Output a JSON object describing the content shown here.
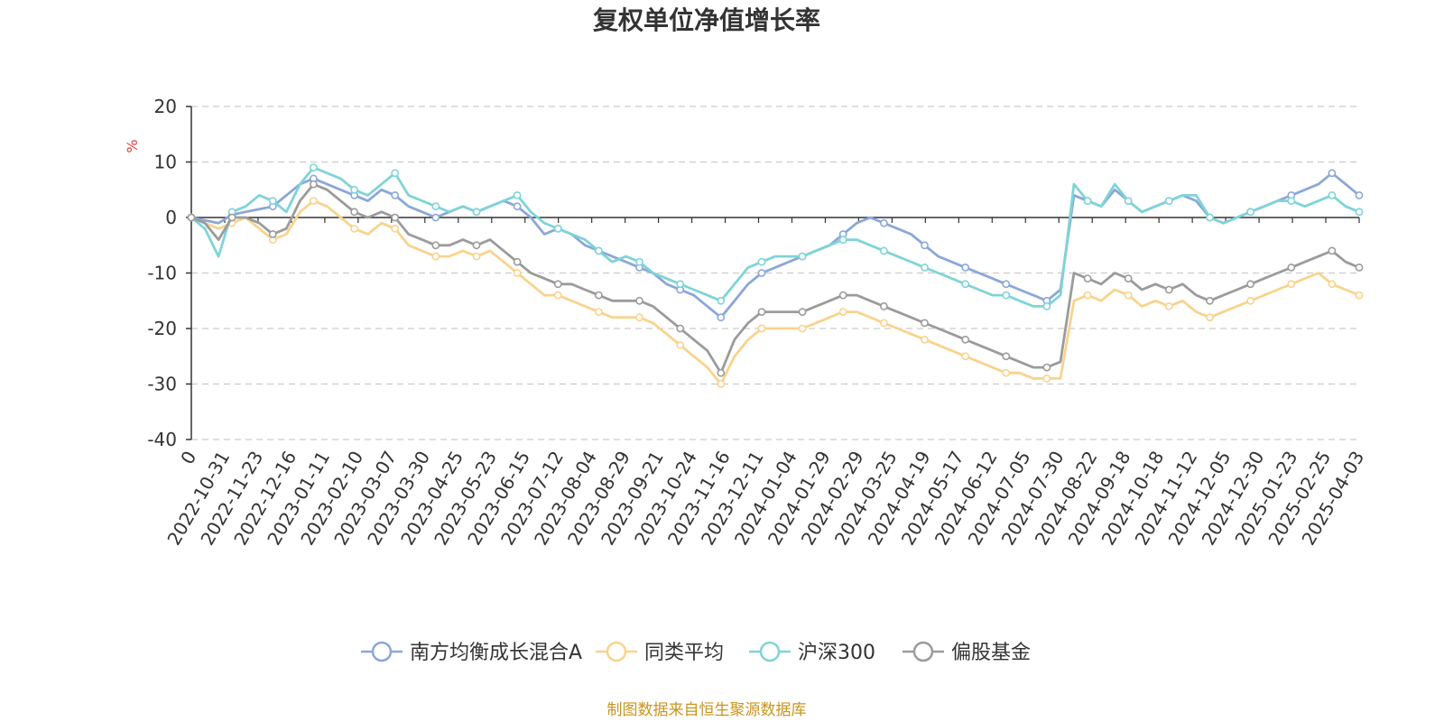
{
  "chart_data": {
    "type": "line",
    "title": "复权单位净值增长率",
    "ylabel": "%",
    "ylim": [
      -40,
      20
    ],
    "yticks": [
      "20",
      "10",
      "0",
      "-10",
      "-20",
      "-30",
      "-40"
    ],
    "yticks_values": [
      20,
      10,
      0,
      -10,
      -20,
      -30,
      -40
    ],
    "x_tick_labels": [
      "0",
      "2022-10-31",
      "2022-11-23",
      "2022-12-16",
      "2023-01-11",
      "2023-02-10",
      "2023-03-07",
      "2023-03-30",
      "2023-04-25",
      "2023-05-23",
      "2023-06-15",
      "2023-07-12",
      "2023-08-04",
      "2023-08-29",
      "2023-09-21",
      "2023-10-24",
      "2023-11-16",
      "2023-12-11",
      "2024-01-04",
      "2024-01-29",
      "2024-02-29",
      "2024-03-25",
      "2024-04-19",
      "2024-05-17",
      "2024-06-12",
      "2024-07-05",
      "2024-07-30",
      "2024-08-22",
      "2024-09-18",
      "2024-10-18",
      "2024-11-12",
      "2024-12-05",
      "2024-12-30",
      "2025-01-23",
      "2025-02-25",
      "2025-04-03"
    ],
    "grid": true,
    "legend_position": "bottom",
    "series": [
      {
        "name": "南方均衡成长混合A",
        "color": "#8ba7d9",
        "values": [
          0,
          -0.5,
          -1,
          0.5,
          1,
          1.5,
          2,
          4,
          6,
          7,
          6,
          5,
          4,
          3,
          5,
          4,
          2,
          1,
          0,
          1,
          2,
          1,
          2,
          3,
          2,
          0,
          -3,
          -2,
          -3,
          -5,
          -6,
          -7,
          -8,
          -9,
          -10,
          -12,
          -13,
          -14,
          -16,
          -18,
          -15,
          -12,
          -10,
          -9,
          -8,
          -7,
          -6,
          -5,
          -3,
          -1,
          0,
          -1,
          -2,
          -3,
          -5,
          -7,
          -8,
          -9,
          -10,
          -11,
          -12,
          -13,
          -14,
          -15,
          -13,
          4,
          3,
          2,
          5,
          3,
          1,
          2,
          3,
          4,
          3,
          0,
          -1,
          0,
          1,
          2,
          3,
          4,
          5,
          6,
          8,
          6,
          4
        ]
      },
      {
        "name": "同类平均",
        "color": "#f9d38d",
        "values": [
          0,
          -1,
          -2,
          -1,
          0,
          -2,
          -4,
          -3,
          1,
          3,
          2,
          0,
          -2,
          -3,
          -1,
          -2,
          -5,
          -6,
          -7,
          -7,
          -6,
          -7,
          -6,
          -8,
          -10,
          -12,
          -14,
          -14,
          -15,
          -16,
          -17,
          -18,
          -18,
          -18,
          -19,
          -21,
          -23,
          -25,
          -27,
          -30,
          -25,
          -22,
          -20,
          -20,
          -20,
          -20,
          -19,
          -18,
          -17,
          -17,
          -18,
          -19,
          -20,
          -21,
          -22,
          -23,
          -24,
          -25,
          -26,
          -27,
          -28,
          -28,
          -29,
          -29,
          -29,
          -15,
          -14,
          -15,
          -13,
          -14,
          -16,
          -15,
          -16,
          -15,
          -17,
          -18,
          -17,
          -16,
          -15,
          -14,
          -13,
          -12,
          -11,
          -10,
          -12,
          -13,
          -14
        ]
      },
      {
        "name": "沪深300",
        "color": "#7fd4d7",
        "values": [
          0,
          -2,
          -7,
          1,
          2,
          4,
          3,
          1,
          6,
          9,
          8,
          7,
          5,
          4,
          6,
          8,
          4,
          3,
          2,
          1,
          2,
          1,
          2,
          3,
          4,
          1,
          -1,
          -2,
          -3,
          -4,
          -6,
          -8,
          -7,
          -8,
          -10,
          -11,
          -12,
          -13,
          -14,
          -15,
          -12,
          -9,
          -8,
          -7,
          -7,
          -7,
          -6,
          -5,
          -4,
          -4,
          -5,
          -6,
          -7,
          -8,
          -9,
          -10,
          -11,
          -12,
          -13,
          -14,
          -14,
          -15,
          -16,
          -16,
          -14,
          6,
          3,
          2,
          6,
          3,
          1,
          2,
          3,
          4,
          4,
          0,
          -1,
          0,
          1,
          2,
          3,
          3,
          2,
          3,
          4,
          2,
          1
        ]
      },
      {
        "name": "偏股基金",
        "color": "#9b9b9b",
        "values": [
          0,
          -1,
          -4,
          0,
          0,
          -1,
          -3,
          -2,
          3,
          6,
          5,
          3,
          1,
          0,
          1,
          0,
          -3,
          -4,
          -5,
          -5,
          -4,
          -5,
          -4,
          -6,
          -8,
          -10,
          -11,
          -12,
          -12,
          -13,
          -14,
          -15,
          -15,
          -15,
          -16,
          -18,
          -20,
          -22,
          -24,
          -28,
          -22,
          -19,
          -17,
          -17,
          -17,
          -17,
          -16,
          -15,
          -14,
          -14,
          -15,
          -16,
          -17,
          -18,
          -19,
          -20,
          -21,
          -22,
          -23,
          -24,
          -25,
          -26,
          -27,
          -27,
          -26,
          -10,
          -11,
          -12,
          -10,
          -11,
          -13,
          -12,
          -13,
          -12,
          -14,
          -15,
          -14,
          -13,
          -12,
          -11,
          -10,
          -9,
          -8,
          -7,
          -6,
          -8,
          -9
        ]
      }
    ]
  },
  "source": "制图数据来自恒生聚源数据库"
}
